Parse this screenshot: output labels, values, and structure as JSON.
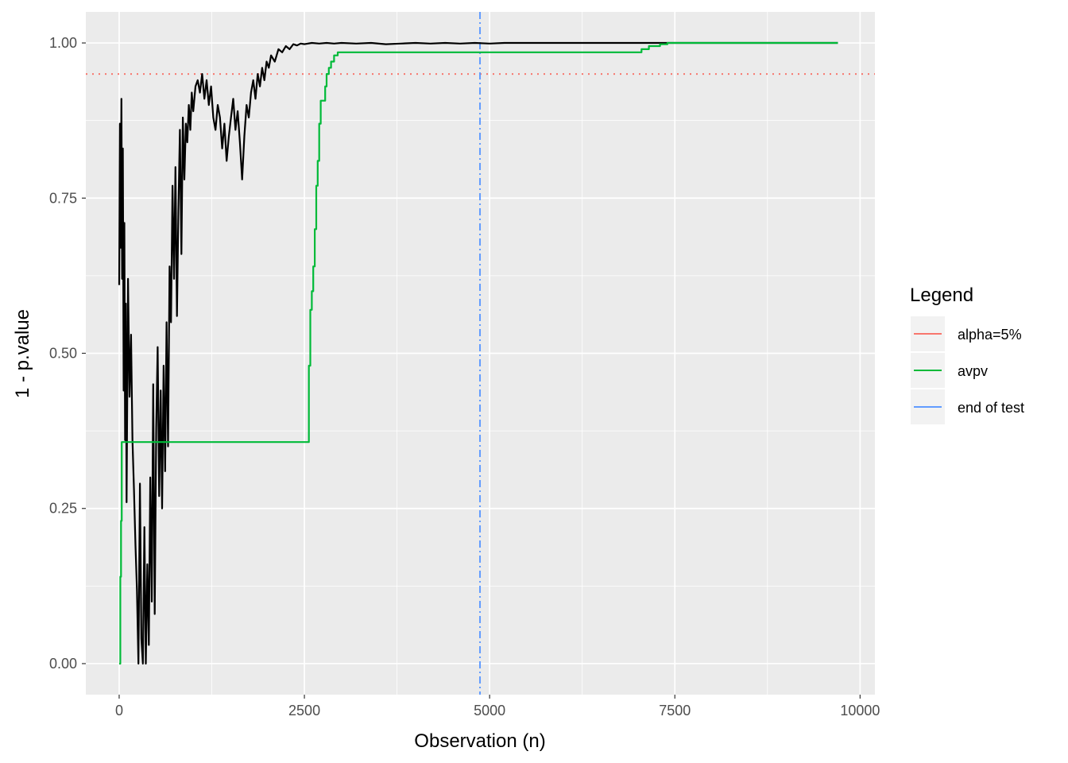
{
  "chart_data": {
    "type": "line",
    "title": "",
    "xlabel": "Observation (n)",
    "ylabel": "1 - p.value",
    "xlim": [
      -450,
      10200
    ],
    "ylim": [
      -0.05,
      1.05
    ],
    "x_ticks": [
      0,
      2500,
      5000,
      7500,
      10000
    ],
    "x_tick_labels": [
      "0",
      "2500",
      "5000",
      "7500",
      "10000"
    ],
    "y_ticks": [
      0,
      0.25,
      0.5,
      0.75,
      1.0
    ],
    "y_tick_labels": [
      "0.00",
      "0.25",
      "0.50",
      "0.75",
      "1.00"
    ],
    "grid": true,
    "background": "#ebebeb",
    "legend": {
      "title": "Legend",
      "position": "right",
      "items": [
        {
          "label": "alpha=5%",
          "color": "#f8766d"
        },
        {
          "label": "avpv",
          "color": "#00ba38"
        },
        {
          "label": "end of test",
          "color": "#619cff"
        }
      ]
    },
    "reference_lines": [
      {
        "orientation": "horizontal",
        "value": 0.95,
        "color": "#f8766d",
        "style": "dotted",
        "legend": "alpha=5%"
      },
      {
        "orientation": "vertical",
        "value": 4870,
        "color": "#619cff",
        "style": "dashdot",
        "legend": "end of test"
      }
    ],
    "series": [
      {
        "color": "#000000",
        "x": [
          0,
          10,
          20,
          30,
          40,
          50,
          60,
          70,
          80,
          90,
          100,
          120,
          140,
          160,
          180,
          200,
          220,
          240,
          260,
          280,
          300,
          320,
          340,
          360,
          380,
          400,
          420,
          440,
          460,
          480,
          500,
          520,
          540,
          560,
          580,
          600,
          620,
          640,
          660,
          680,
          700,
          720,
          740,
          760,
          780,
          800,
          820,
          840,
          860,
          880,
          900,
          920,
          940,
          960,
          980,
          1000,
          1030,
          1060,
          1090,
          1120,
          1150,
          1180,
          1210,
          1240,
          1270,
          1300,
          1330,
          1360,
          1390,
          1420,
          1450,
          1480,
          1510,
          1540,
          1570,
          1600,
          1630,
          1660,
          1690,
          1720,
          1750,
          1780,
          1810,
          1840,
          1870,
          1900,
          1930,
          1960,
          1990,
          2020,
          2050,
          2100,
          2150,
          2200,
          2250,
          2300,
          2350,
          2400,
          2450,
          2500,
          2600,
          2700,
          2800,
          2900,
          3000,
          3200,
          3400,
          3600,
          3800,
          4000,
          4200,
          4400,
          4600,
          4800,
          5000,
          5200,
          5400,
          6000,
          7000,
          8000,
          9000,
          9700
        ],
        "y": [
          0.61,
          0.87,
          0.67,
          0.91,
          0.62,
          0.83,
          0.44,
          0.71,
          0.36,
          0.58,
          0.26,
          0.62,
          0.43,
          0.53,
          0.36,
          0.28,
          0.19,
          0.12,
          0.0,
          0.29,
          0.04,
          0.0,
          0.22,
          0.0,
          0.16,
          0.03,
          0.3,
          0.1,
          0.45,
          0.08,
          0.38,
          0.51,
          0.27,
          0.44,
          0.25,
          0.48,
          0.31,
          0.55,
          0.35,
          0.64,
          0.55,
          0.77,
          0.62,
          0.8,
          0.56,
          0.73,
          0.86,
          0.66,
          0.88,
          0.78,
          0.87,
          0.84,
          0.9,
          0.86,
          0.92,
          0.89,
          0.93,
          0.94,
          0.92,
          0.95,
          0.91,
          0.94,
          0.9,
          0.93,
          0.88,
          0.86,
          0.9,
          0.88,
          0.83,
          0.87,
          0.81,
          0.85,
          0.88,
          0.91,
          0.86,
          0.89,
          0.84,
          0.78,
          0.85,
          0.9,
          0.88,
          0.92,
          0.94,
          0.91,
          0.95,
          0.93,
          0.96,
          0.94,
          0.97,
          0.96,
          0.98,
          0.97,
          0.99,
          0.985,
          0.995,
          0.99,
          0.998,
          0.996,
          0.999,
          0.998,
          1.0,
          0.999,
          1.0,
          0.999,
          1.0,
          0.999,
          1.0,
          0.998,
          0.999,
          1.0,
          0.999,
          1.0,
          0.999,
          1.0,
          0.999,
          1.0,
          1.0,
          1.0,
          1.0,
          1.0,
          1.0,
          1.0
        ]
      },
      {
        "name": "avpv",
        "color": "#00ba38",
        "step": true,
        "x": [
          0,
          15,
          25,
          35,
          2540,
          2560,
          2580,
          2600,
          2620,
          2640,
          2660,
          2680,
          2700,
          2720,
          2740,
          2760,
          2780,
          2800,
          2830,
          2860,
          2900,
          2950,
          3000,
          3500,
          4000,
          5000,
          6000,
          7000,
          7050,
          7150,
          7300,
          7400,
          8000,
          9000,
          9700
        ],
        "y": [
          0.0,
          0.14,
          0.23,
          0.357,
          0.357,
          0.48,
          0.57,
          0.6,
          0.64,
          0.7,
          0.77,
          0.81,
          0.87,
          0.907,
          0.907,
          0.907,
          0.93,
          0.95,
          0.96,
          0.97,
          0.98,
          0.985,
          0.985,
          0.985,
          0.985,
          0.985,
          0.985,
          0.985,
          0.99,
          0.995,
          0.998,
          1.0,
          1.0,
          1.0,
          1.0
        ]
      }
    ]
  }
}
